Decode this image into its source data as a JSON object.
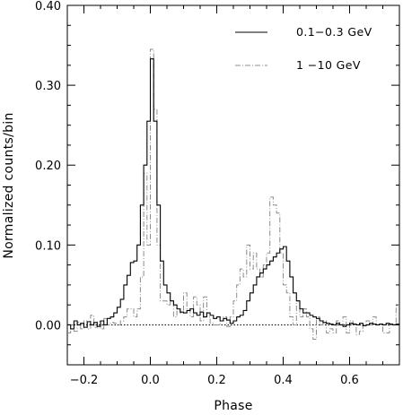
{
  "chart_data": {
    "type": "line",
    "xlabel": "Phase",
    "ylabel": "Normalized counts/bin",
    "xlim": [
      -0.25,
      0.75
    ],
    "ylim": [
      -0.05,
      0.4
    ],
    "xticks": [
      -0.2,
      0.0,
      0.2,
      0.4,
      0.6
    ],
    "xtick_labels": [
      "−0.2",
      "0.0",
      "0.2",
      "0.4",
      "0.6"
    ],
    "yticks": [
      0.0,
      0.1,
      0.2,
      0.3,
      0.4
    ],
    "ytick_labels": [
      "0.00",
      "0.10",
      "0.20",
      "0.30",
      "0.40"
    ],
    "baseline": 0.0,
    "legend_position": "top-right",
    "bin_width": 0.01,
    "series": [
      {
        "name": "0.1−0.3 GeV",
        "color": "#000000",
        "style": "solid step",
        "bin_starts": [
          -0.25,
          -0.24,
          -0.23,
          -0.22,
          -0.21,
          -0.2,
          -0.19,
          -0.18,
          -0.17,
          -0.16,
          -0.15,
          -0.14,
          -0.13,
          -0.12,
          -0.11,
          -0.1,
          -0.09,
          -0.08,
          -0.07,
          -0.06,
          -0.05,
          -0.04,
          -0.03,
          -0.02,
          -0.01,
          0.0,
          0.01,
          0.02,
          0.03,
          0.04,
          0.05,
          0.06,
          0.07,
          0.08,
          0.09,
          0.1,
          0.11,
          0.12,
          0.13,
          0.14,
          0.15,
          0.16,
          0.17,
          0.18,
          0.19,
          0.2,
          0.21,
          0.22,
          0.23,
          0.24,
          0.25,
          0.26,
          0.27,
          0.28,
          0.29,
          0.3,
          0.31,
          0.32,
          0.33,
          0.34,
          0.35,
          0.36,
          0.37,
          0.38,
          0.39,
          0.4,
          0.41,
          0.42,
          0.43,
          0.44,
          0.45,
          0.46,
          0.47,
          0.48,
          0.49,
          0.5,
          0.51,
          0.52,
          0.53,
          0.54,
          0.55,
          0.56,
          0.57,
          0.58,
          0.59,
          0.6,
          0.61,
          0.62,
          0.63,
          0.64,
          0.65,
          0.66,
          0.67,
          0.68,
          0.69,
          0.7,
          0.71,
          0.72,
          0.73,
          0.74
        ],
        "values": [
          0.0,
          -0.005,
          0.005,
          0.0,
          0.002,
          -0.003,
          0.004,
          0.0,
          0.003,
          -0.002,
          0.005,
          0.0,
          0.008,
          0.01,
          0.015,
          0.022,
          0.032,
          0.05,
          0.062,
          0.078,
          0.08,
          0.1,
          0.15,
          0.2,
          0.255,
          0.333,
          0.255,
          0.15,
          0.08,
          0.05,
          0.04,
          0.03,
          0.025,
          0.02,
          0.016,
          0.015,
          0.018,
          0.02,
          0.015,
          0.012,
          0.016,
          0.01,
          0.015,
          0.012,
          0.008,
          0.01,
          0.005,
          0.008,
          0.006,
          0.002,
          0.005,
          0.01,
          0.012,
          0.018,
          0.03,
          0.04,
          0.05,
          0.06,
          0.065,
          0.07,
          0.075,
          0.08,
          0.085,
          0.09,
          0.095,
          0.098,
          0.08,
          0.06,
          0.04,
          0.03,
          0.02,
          0.015,
          0.015,
          0.012,
          0.01,
          0.008,
          0.005,
          0.003,
          0.002,
          0.001,
          0.0,
          0.002,
          0.0,
          -0.002,
          0.0,
          0.002,
          0.001,
          0.0,
          0.002,
          -0.001,
          0.0,
          0.002,
          0.001,
          0.0,
          0.001,
          0.0,
          0.002,
          0.001,
          0.0,
          0.001
        ]
      },
      {
        "name": "1 −10 GeV",
        "color": "#8c8c8c",
        "style": "dash-dot step",
        "bin_starts": [
          -0.25,
          -0.24,
          -0.23,
          -0.22,
          -0.21,
          -0.2,
          -0.19,
          -0.18,
          -0.17,
          -0.16,
          -0.15,
          -0.14,
          -0.13,
          -0.12,
          -0.11,
          -0.1,
          -0.09,
          -0.08,
          -0.07,
          -0.06,
          -0.05,
          -0.04,
          -0.03,
          -0.02,
          -0.01,
          0.0,
          0.01,
          0.02,
          0.03,
          0.04,
          0.05,
          0.06,
          0.07,
          0.08,
          0.09,
          0.1,
          0.11,
          0.12,
          0.13,
          0.14,
          0.15,
          0.16,
          0.17,
          0.18,
          0.19,
          0.2,
          0.21,
          0.22,
          0.23,
          0.24,
          0.25,
          0.26,
          0.27,
          0.28,
          0.29,
          0.3,
          0.31,
          0.32,
          0.33,
          0.34,
          0.35,
          0.36,
          0.37,
          0.38,
          0.39,
          0.4,
          0.41,
          0.42,
          0.43,
          0.44,
          0.45,
          0.46,
          0.47,
          0.48,
          0.49,
          0.5,
          0.51,
          0.52,
          0.53,
          0.54,
          0.55,
          0.56,
          0.57,
          0.58,
          0.59,
          0.6,
          0.61,
          0.62,
          0.63,
          0.64,
          0.65,
          0.66,
          0.67,
          0.68,
          0.69,
          0.7,
          0.71,
          0.72,
          0.73,
          0.74
        ],
        "values": [
          -0.01,
          0.0,
          -0.008,
          0.003,
          -0.005,
          0.005,
          -0.005,
          0.012,
          -0.003,
          0.004,
          -0.005,
          0.008,
          0.0,
          0.003,
          0.002,
          0.0,
          0.005,
          0.01,
          0.02,
          0.02,
          0.01,
          0.02,
          0.06,
          0.19,
          0.1,
          0.345,
          0.27,
          0.1,
          0.03,
          0.03,
          0.025,
          0.03,
          0.01,
          0.02,
          0.015,
          0.04,
          0.02,
          0.01,
          0.035,
          0.025,
          0.005,
          0.035,
          0.01,
          0.002,
          0.0,
          0.0,
          0.005,
          0.01,
          -0.002,
          0.01,
          0.03,
          0.05,
          0.07,
          0.06,
          0.1,
          0.07,
          0.09,
          0.07,
          0.06,
          0.075,
          0.09,
          0.16,
          0.15,
          0.14,
          0.09,
          0.05,
          0.04,
          0.01,
          0.0,
          0.03,
          0.01,
          0.02,
          0.01,
          -0.005,
          -0.018,
          0.01,
          0.0,
          0.005,
          -0.01,
          -0.005,
          -0.01,
          0.005,
          0.0,
          0.01,
          -0.01,
          0.005,
          0.0,
          -0.012,
          -0.008,
          0.0,
          0.005,
          0.0,
          0.01,
          0.0,
          0.0,
          -0.01,
          -0.01,
          0.0,
          0.0,
          0.025
        ]
      }
    ]
  }
}
